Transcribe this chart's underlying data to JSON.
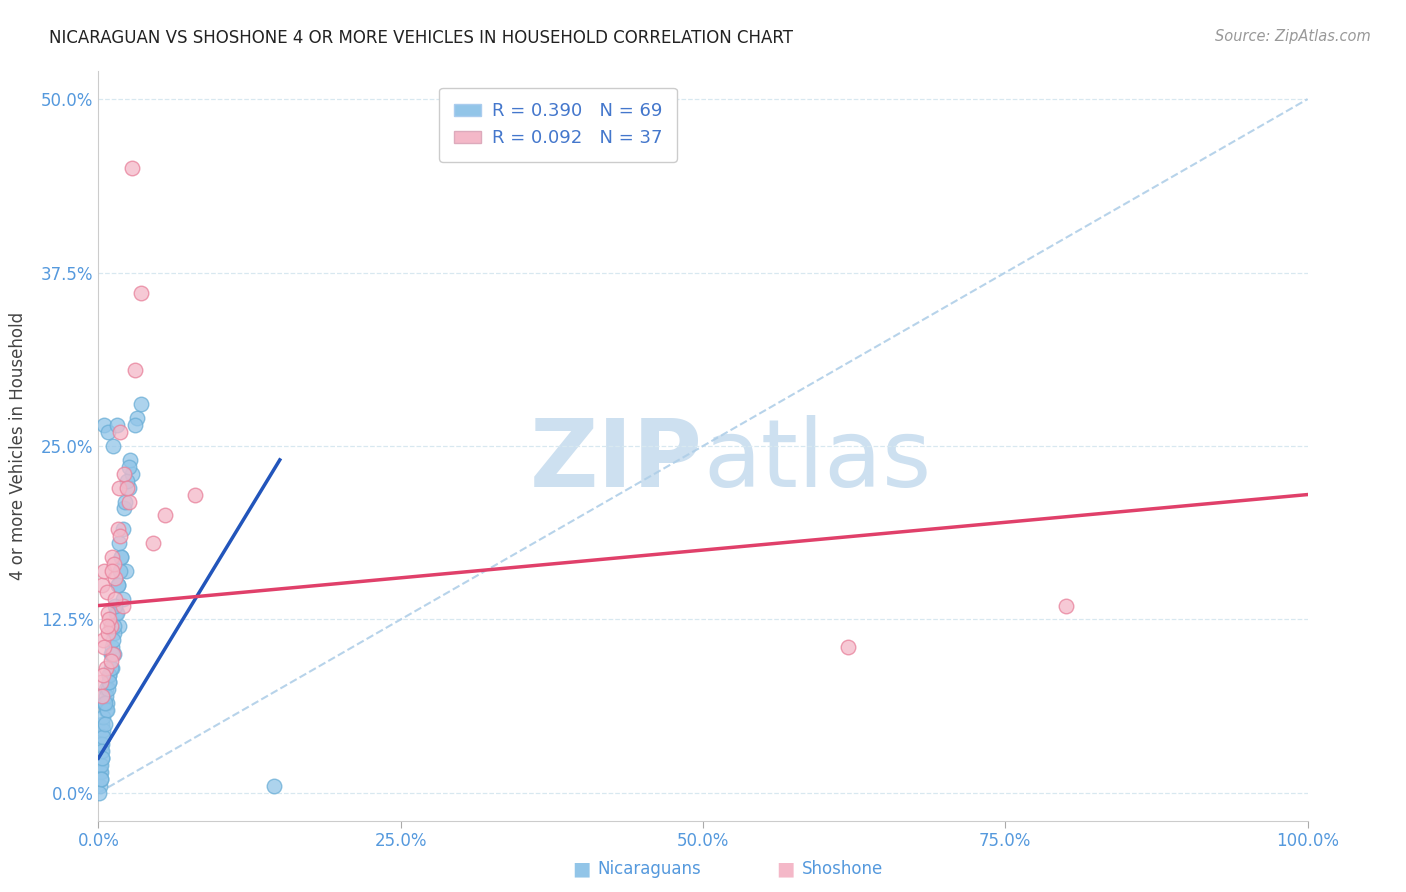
{
  "title": "NICARAGUAN VS SHOSHONE 4 OR MORE VEHICLES IN HOUSEHOLD CORRELATION CHART",
  "source": "Source: ZipAtlas.com",
  "ylabel_label": "4 or more Vehicles in Household",
  "xlim": [
    0.0,
    100.0
  ],
  "ylim": [
    -2.0,
    52.0
  ],
  "blue_color": "#92c5e8",
  "blue_edge_color": "#6aaed6",
  "pink_color": "#f4b8c8",
  "pink_edge_color": "#e8809a",
  "blue_line_color": "#2255bb",
  "pink_line_color": "#e0406a",
  "diag_color": "#b0cfe8",
  "watermark_color": "#cde0f0",
  "legend_blue_R": "R = 0.390",
  "legend_blue_N": "N = 69",
  "legend_pink_R": "R = 0.092",
  "legend_pink_N": "N = 37",
  "blue_scatter_x": [
    0.5,
    0.8,
    1.2,
    1.5,
    0.3,
    0.2,
    0.1,
    0.4,
    0.6,
    0.9,
    1.1,
    1.3,
    1.7,
    2.0,
    2.3,
    2.5,
    0.7,
    0.3,
    0.15,
    0.25,
    0.35,
    0.45,
    0.65,
    0.85,
    1.05,
    1.25,
    1.45,
    1.65,
    1.85,
    2.1,
    2.8,
    3.2,
    0.2,
    0.12,
    0.3,
    0.4,
    0.6,
    0.9,
    1.1,
    1.5,
    1.9,
    2.2,
    2.6,
    3.0,
    0.18,
    0.38,
    0.7,
    1.0,
    1.3,
    1.8,
    2.4,
    0.28,
    0.52,
    0.78,
    1.1,
    1.4,
    1.7,
    0.22,
    0.32,
    0.55,
    0.88,
    1.2,
    1.6,
    2.0,
    2.5,
    3.5,
    14.5,
    0.08,
    0.18
  ],
  "blue_scatter_y": [
    26.5,
    26.0,
    25.0,
    26.5,
    5.0,
    3.0,
    2.0,
    4.0,
    6.0,
    8.0,
    9.0,
    10.0,
    12.0,
    14.0,
    16.0,
    22.0,
    6.5,
    2.5,
    1.5,
    3.5,
    4.5,
    6.5,
    7.5,
    8.5,
    10.0,
    11.5,
    13.0,
    15.0,
    17.0,
    20.5,
    23.0,
    27.0,
    1.5,
    0.5,
    3.5,
    5.5,
    7.0,
    8.5,
    10.5,
    13.0,
    17.0,
    21.0,
    24.0,
    26.5,
    2.0,
    4.0,
    6.0,
    9.0,
    12.0,
    16.0,
    22.5,
    3.0,
    5.0,
    7.5,
    10.0,
    13.5,
    18.0,
    1.0,
    2.5,
    6.5,
    8.0,
    11.0,
    15.0,
    19.0,
    23.5,
    28.0,
    0.5,
    0.0,
    1.0
  ],
  "pink_scatter_x": [
    0.3,
    0.5,
    0.8,
    1.0,
    1.2,
    0.4,
    0.7,
    1.1,
    1.4,
    1.7,
    2.0,
    2.5,
    0.2,
    0.6,
    0.9,
    1.3,
    1.6,
    2.1,
    3.0,
    0.3,
    0.5,
    0.8,
    1.0,
    1.4,
    1.8,
    2.4,
    0.4,
    0.7,
    1.1,
    8.0,
    5.5,
    4.5,
    3.5,
    2.8,
    1.8,
    62.0,
    80.0
  ],
  "pink_scatter_y": [
    15.0,
    16.0,
    13.0,
    12.0,
    10.0,
    11.0,
    14.5,
    17.0,
    15.5,
    22.0,
    13.5,
    21.0,
    8.0,
    9.0,
    12.5,
    16.5,
    19.0,
    23.0,
    30.5,
    7.0,
    10.5,
    11.5,
    9.5,
    14.0,
    18.5,
    22.0,
    8.5,
    12.0,
    16.0,
    21.5,
    20.0,
    18.0,
    36.0,
    45.0,
    26.0,
    10.5,
    13.5
  ],
  "blue_trend_x": [
    0.0,
    15.0
  ],
  "blue_trend_y": [
    2.5,
    24.0
  ],
  "pink_trend_x": [
    0.0,
    100.0
  ],
  "pink_trend_y": [
    13.5,
    21.5
  ],
  "xticks": [
    0,
    25,
    50,
    75,
    100
  ],
  "xticklabels": [
    "0.0%",
    "25.0%",
    "50.0%",
    "75.0%",
    "100.0%"
  ],
  "yticks": [
    0,
    12.5,
    25.0,
    37.5,
    50.0
  ],
  "yticklabels": [
    "0.0%",
    "12.5%",
    "25.0%",
    "37.5%",
    "50.0%"
  ],
  "tick_color": "#5599dd",
  "grid_color": "#d8e8f0",
  "spine_color": "#cccccc",
  "title_color": "#222222",
  "source_color": "#999999",
  "ylabel_color": "#444444",
  "legend_text_color": "#4477cc"
}
